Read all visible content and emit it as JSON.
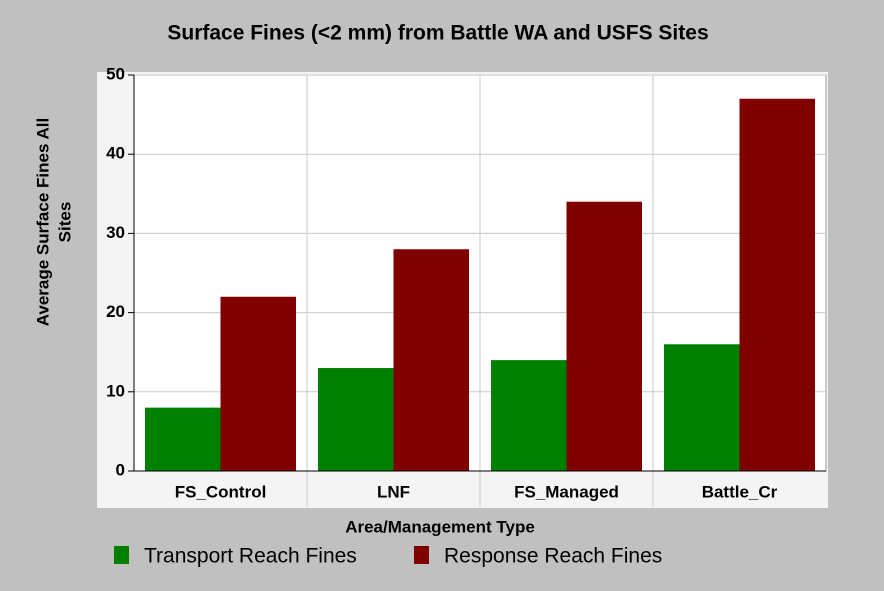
{
  "chart_data": {
    "type": "bar",
    "title": "Surface Fines (<2 mm) from Battle WA and USFS Sites",
    "x_label": "Area/Management Type",
    "y_label": [
      "Average Surface Fines All",
      "Sites"
    ],
    "categories": [
      "FS_Control",
      "LNF",
      "FS_Managed",
      "Battle_Cr"
    ],
    "series": [
      {
        "name": "Transport Reach Fines",
        "color": "#008000",
        "values": [
          8,
          13,
          14,
          16
        ]
      },
      {
        "name": "Response Reach Fines",
        "color": "#800000",
        "values": [
          22,
          28,
          34,
          47
        ]
      }
    ],
    "ylim": [
      0,
      50
    ],
    "yticks": [
      0,
      10,
      20,
      30,
      40,
      50
    ],
    "grid": true
  }
}
